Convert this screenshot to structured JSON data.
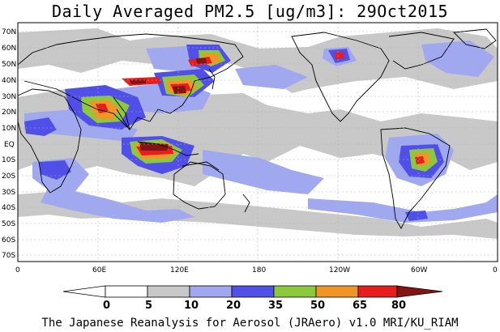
{
  "title": "Daily Averaged PM2.5 [ug/m3]: 29Oct2015",
  "footer": "The Japanese Reanalysis for Aerosol (JRAero) v1.0 MRI/KU_RIAM",
  "lat_labels": [
    "70N",
    "60N",
    "50N",
    "40N",
    "30N",
    "20N",
    "10N",
    "EQ",
    "10S",
    "20S",
    "30S",
    "40S",
    "50S",
    "60S",
    "70S"
  ],
  "lon_labels": [
    "0",
    "60E",
    "120E",
    "180",
    "120W",
    "60W",
    "0"
  ],
  "colorbar": {
    "ticks": [
      "0",
      "5",
      "10",
      "20",
      "35",
      "50",
      "65",
      "80"
    ],
    "colors": [
      "#ffffff",
      "#c8c8c8",
      "#a0a8f0",
      "#5050e8",
      "#8cc83c",
      "#f09628",
      "#e61e1e",
      "#821414"
    ]
  },
  "colors": {
    "land_outline": "#000000",
    "grid": "#b4b4b4",
    "low": "#c8c8c8",
    "mid": "#a0a8f0",
    "blue": "#5050e8",
    "green": "#8cc83c",
    "orange": "#f09628",
    "red": "#e61e1e",
    "dark": "#821414"
  }
}
